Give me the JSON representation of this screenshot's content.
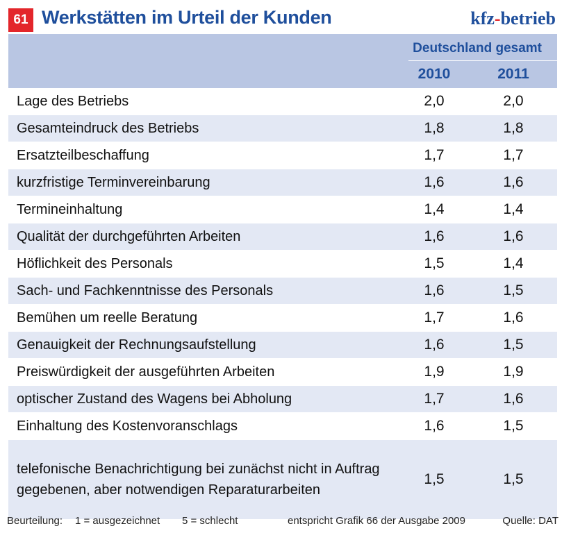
{
  "header": {
    "number": "61",
    "title": "Werkstätten im Urteil der Kunden",
    "brand_a": "kfz",
    "brand_dash": "-",
    "brand_b": "betrieb"
  },
  "chart_data": {
    "type": "table",
    "title": "Werkstätten im Urteil der Kunden",
    "column_group": "Deutschland gesamt",
    "columns": [
      "2010",
      "2011"
    ],
    "rows": [
      {
        "label": "Lage des Betriebs",
        "v2010": "2,0",
        "v2011": "2,0"
      },
      {
        "label": "Gesamteindruck des Betriebs",
        "v2010": "1,8",
        "v2011": "1,8"
      },
      {
        "label": "Ersatzteilbeschaffung",
        "v2010": "1,7",
        "v2011": "1,7"
      },
      {
        "label": "kurzfristige Terminvereinbarung",
        "v2010": "1,6",
        "v2011": "1,6"
      },
      {
        "label": "Termineinhaltung",
        "v2010": "1,4",
        "v2011": "1,4"
      },
      {
        "label": "Qualität der durchgeführten Arbeiten",
        "v2010": "1,6",
        "v2011": "1,6"
      },
      {
        "label": "Höflichkeit des Personals",
        "v2010": "1,5",
        "v2011": "1,4"
      },
      {
        "label": "Sach- und Fachkenntnisse des Personals",
        "v2010": "1,6",
        "v2011": "1,5"
      },
      {
        "label": "Bemühen um reelle Beratung",
        "v2010": "1,7",
        "v2011": "1,6"
      },
      {
        "label": "Genauigkeit der Rechnungsaufstellung",
        "v2010": "1,6",
        "v2011": "1,5"
      },
      {
        "label": "Preiswürdigkeit der ausgeführten Arbeiten",
        "v2010": "1,9",
        "v2011": "1,9"
      },
      {
        "label": "optischer Zustand des Wagens bei Abholung",
        "v2010": "1,7",
        "v2011": "1,6"
      },
      {
        "label": "Einhaltung des Kostenvoranschlags",
        "v2010": "1,6",
        "v2011": "1,5"
      },
      {
        "label": "telefonische Benachrichtigung bei zunächst nicht in Auftrag gegebenen, aber notwendigen Reparaturarbeiten",
        "v2010": "1,5",
        "v2011": "1,5"
      }
    ]
  },
  "footer": {
    "rating_label": "Beurteilung:",
    "best": "1 = ausgezeichnet",
    "worst": "5 = schlecht",
    "note": "entspricht Grafik 66 der Ausgabe 2009",
    "source": "Quelle: DAT"
  }
}
